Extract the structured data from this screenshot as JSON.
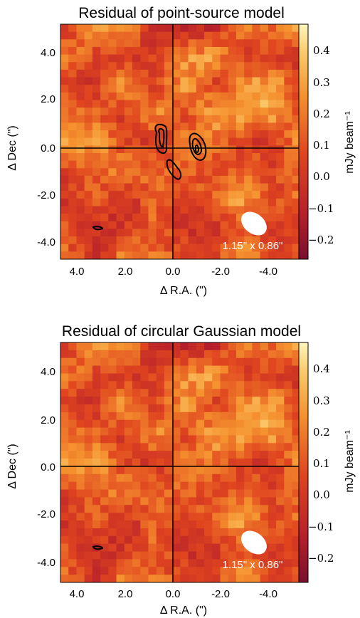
{
  "chart_data": [
    {
      "type": "heatmap",
      "title": "Residual of point-source model",
      "xlabel": "Δ R.A. (\")",
      "ylabel": "Δ Dec (\")",
      "xlim": [
        4.8,
        -5.5
      ],
      "ylim": [
        -4.8,
        5.3
      ],
      "x_ticks": [
        "4.0",
        "2.0",
        "0.0",
        "-2.0",
        "-4.0"
      ],
      "y_ticks": [
        "4.0",
        "2.0",
        "0.0",
        "-2.0",
        "-4.0"
      ],
      "colorbar": {
        "label": "mJy beam⁻¹",
        "range": [
          -0.27,
          0.47
        ],
        "ticks": [
          "0.4",
          "0.3",
          "0.2",
          "0.1",
          "0.0",
          "−0.1",
          "−0.2"
        ]
      },
      "beam_label": "1.15\" x 0.86\"",
      "crosshair": [
        0,
        0
      ],
      "contours": true,
      "grid": false
    },
    {
      "type": "heatmap",
      "title": "Residual of circular Gaussian model",
      "xlabel": "Δ R.A. (\")",
      "ylabel": "Δ Dec (\")",
      "xlim": [
        4.8,
        -5.5
      ],
      "ylim": [
        -4.8,
        5.3
      ],
      "x_ticks": [
        "4.0",
        "2.0",
        "0.0",
        "-2.0",
        "-4.0"
      ],
      "y_ticks": [
        "4.0",
        "2.0",
        "0.0",
        "-2.0",
        "-4.0"
      ],
      "colorbar": {
        "label": "mJy beam⁻¹",
        "range": [
          -0.27,
          0.47
        ],
        "ticks": [
          "0.4",
          "0.3",
          "0.2",
          "0.1",
          "0.0",
          "−0.1",
          "−0.2"
        ]
      },
      "beam_label": "1.15\" x 0.86\"",
      "crosshair": [
        0,
        0
      ],
      "contours": false,
      "grid": false
    }
  ]
}
